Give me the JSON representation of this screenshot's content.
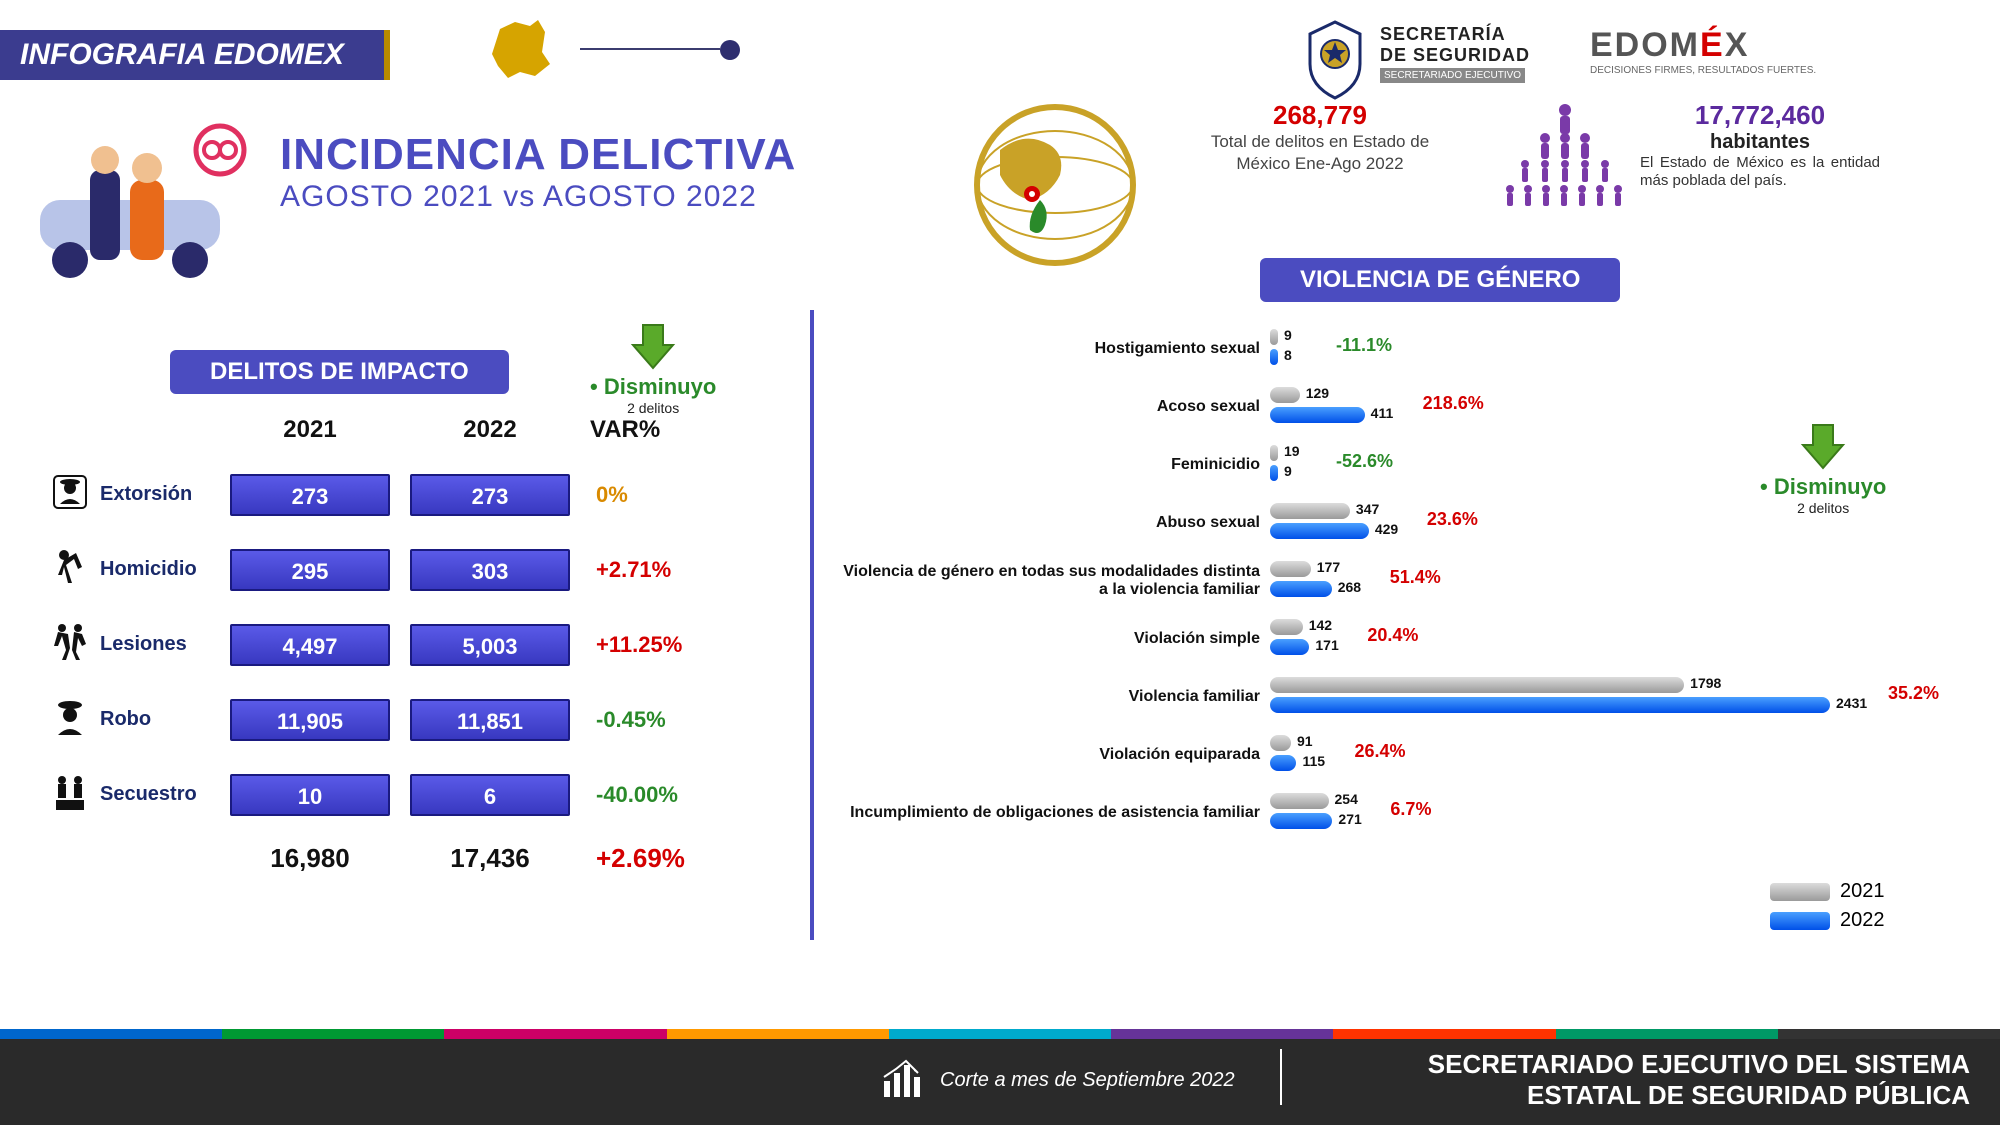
{
  "colors": {
    "brand_purple": "#4b4cc0",
    "header_dark": "#3b3c8f",
    "red": "#d40000",
    "green": "#2a8a2a",
    "orange": "#d98a00",
    "darkblue_text": "#1a2a6a",
    "bar2021": "#b0b0b0",
    "bar2022": "#1060e8",
    "footer_bg": "#2a2a2a"
  },
  "header": {
    "band": "INFOGRAFIA EDOMEX"
  },
  "title": {
    "line1": "INCIDENCIA DELICTIVA",
    "line2": "AGOSTO  2021 vs AGOSTO  2022"
  },
  "top_stats": {
    "total_crimes": {
      "value": "268,779",
      "label": "Total de delitos en Estado de México Ene-Ago 2022"
    },
    "population": {
      "value": "17,772,460",
      "unit": "habitantes",
      "label": "El Estado de México es la entidad más poblada del país."
    }
  },
  "logos": {
    "secretaria": {
      "l1": "SECRETARÍA",
      "l2": "DE SEGURIDAD",
      "l3": "SECRETARIADO EJECUTIVO"
    },
    "edomex": {
      "t": "EDOMÉX",
      "s": "DECISIONES FIRMES, RESULTADOS FUERTES."
    }
  },
  "impacts": {
    "title": "DELITOS DE IMPACTO",
    "headers": {
      "y21": "2021",
      "y22": "2022",
      "var": "VAR%"
    },
    "rows": [
      {
        "label": "Extorsión",
        "v21": "273",
        "v22": "273",
        "var": "0%",
        "var_color": "#d98a00"
      },
      {
        "label": "Homicidio",
        "v21": "295",
        "v22": "303",
        "var": "+2.71%",
        "var_color": "#d40000"
      },
      {
        "label": "Lesiones",
        "v21": "4,497",
        "v22": "5,003",
        "var": "+11.25%",
        "var_color": "#d40000"
      },
      {
        "label": "Robo",
        "v21": "11,905",
        "v22": "11,851",
        "var": "-0.45%",
        "var_color": "#2a8a2a"
      },
      {
        "label": "Secuestro",
        "v21": "10",
        "v22": "6",
        "var": "-40.00%",
        "var_color": "#2a8a2a"
      }
    ],
    "totals": {
      "t21": "16,980",
      "t22": "17,436",
      "var": "+2.69%",
      "var_color": "#d40000"
    },
    "dism": {
      "w": "Disminuyo",
      "s": "2 delitos"
    }
  },
  "violence": {
    "title": "VIOLENCIA DE GÉNERO",
    "max": 2431,
    "rows": [
      {
        "label": "Hostigamiento sexual",
        "v21": 9,
        "v22": 8,
        "pct": "-11.1%",
        "pct_color": "#2a8a2a"
      },
      {
        "label": "Acoso sexual",
        "v21": 129,
        "v22": 411,
        "pct": "218.6%",
        "pct_color": "#d40000"
      },
      {
        "label": "Feminicidio",
        "v21": 19,
        "v22": 9,
        "pct": "-52.6%",
        "pct_color": "#2a8a2a"
      },
      {
        "label": "Abuso sexual",
        "v21": 347,
        "v22": 429,
        "pct": "23.6%",
        "pct_color": "#d40000"
      },
      {
        "label": "Violencia de género en todas sus modalidades distinta a la violencia familiar",
        "v21": 177,
        "v22": 268,
        "pct": "51.4%",
        "pct_color": "#d40000"
      },
      {
        "label": "Violación simple",
        "v21": 142,
        "v22": 171,
        "pct": "20.4%",
        "pct_color": "#d40000"
      },
      {
        "label": "Violencia familiar",
        "v21": 1798,
        "v22": 2431,
        "pct": "35.2%",
        "pct_color": "#d40000"
      },
      {
        "label": "Violación equiparada",
        "v21": 91,
        "v22": 115,
        "pct": "26.4%",
        "pct_color": "#d40000"
      },
      {
        "label": "Incumplimiento de obligaciones de asistencia familiar",
        "v21": 254,
        "v22": 271,
        "pct": "6.7%",
        "pct_color": "#d40000"
      }
    ],
    "legend": {
      "y21": "2021",
      "y22": "2022"
    },
    "dism": {
      "w": "Disminuyo",
      "s": "2 delitos"
    }
  },
  "footer": {
    "corte": "Corte a mes de Septiembre  2022",
    "org_l1": "SECRETARIADO EJECUTIVO DEL SISTEMA",
    "org_l2": "ESTATAL DE SEGURIDAD PÚBLICA",
    "stripe": [
      "#0066cc",
      "#009933",
      "#cc0066",
      "#ff9900",
      "#00aacc",
      "#663399",
      "#ff3300",
      "#009966",
      "#333333"
    ]
  }
}
